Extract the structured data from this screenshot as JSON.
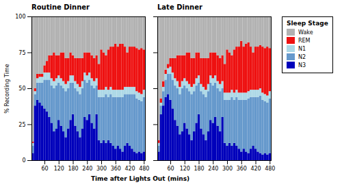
{
  "chart_data": [
    {
      "type": "bar",
      "stacked": true,
      "grid": false,
      "title": "Routine Dinner",
      "xlabel": "Time after Lights Out (mins)",
      "ylabel": "% Recording Time",
      "x": [
        10,
        20,
        30,
        40,
        50,
        60,
        70,
        80,
        90,
        100,
        110,
        120,
        130,
        140,
        150,
        160,
        170,
        180,
        190,
        200,
        210,
        220,
        230,
        240,
        250,
        260,
        270,
        280,
        290,
        300,
        310,
        320,
        330,
        340,
        350,
        360,
        370,
        380,
        390,
        400,
        410,
        420,
        430,
        440,
        450,
        460,
        470,
        480
      ],
      "xlim": [
        5,
        485
      ],
      "xticks": [
        60,
        120,
        180,
        240,
        300,
        360,
        420,
        480
      ],
      "ylim": [
        0,
        100
      ],
      "yticks": [
        0,
        25,
        50,
        75,
        100
      ],
      "series": [
        {
          "name": "N3",
          "color": "#0000bb",
          "values": [
            5,
            38,
            42,
            40,
            38,
            36,
            34,
            30,
            26,
            20,
            22,
            28,
            24,
            20,
            16,
            22,
            28,
            32,
            24,
            20,
            16,
            22,
            30,
            28,
            32,
            26,
            22,
            32,
            14,
            12,
            14,
            12,
            14,
            12,
            10,
            8,
            10,
            8,
            6,
            10,
            12,
            10,
            8,
            6,
            5,
            6,
            5,
            6
          ]
        },
        {
          "name": "N2",
          "color": "#6699cc",
          "values": [
            5,
            8,
            12,
            14,
            16,
            20,
            22,
            26,
            26,
            30,
            30,
            26,
            28,
            30,
            32,
            28,
            26,
            22,
            26,
            28,
            30,
            28,
            26,
            26,
            24,
            26,
            28,
            20,
            30,
            32,
            30,
            34,
            30,
            34,
            34,
            36,
            34,
            36,
            38,
            36,
            34,
            36,
            38,
            40,
            38,
            36,
            36,
            38
          ]
        },
        {
          "name": "N1",
          "color": "#add8e6",
          "values": [
            2,
            2,
            3,
            4,
            4,
            5,
            5,
            5,
            5,
            5,
            5,
            5,
            5,
            5,
            5,
            5,
            5,
            5,
            5,
            5,
            5,
            5,
            5,
            5,
            5,
            5,
            5,
            5,
            5,
            5,
            5,
            5,
            5,
            5,
            5,
            5,
            5,
            5,
            5,
            5,
            5,
            5,
            5,
            5,
            5,
            5,
            5,
            5
          ]
        },
        {
          "name": "REM",
          "color": "#ee1111",
          "values": [
            1,
            2,
            3,
            2,
            2,
            5,
            8,
            12,
            16,
            20,
            16,
            14,
            18,
            20,
            18,
            16,
            16,
            14,
            16,
            18,
            20,
            16,
            14,
            16,
            14,
            16,
            16,
            16,
            18,
            28,
            26,
            22,
            28,
            28,
            30,
            32,
            30,
            32,
            32,
            28,
            24,
            28,
            28,
            28,
            30,
            30,
            32,
            28
          ]
        },
        {
          "name": "Wake",
          "color": "#b2b2b2",
          "values": [
            87,
            50,
            40,
            40,
            40,
            34,
            31,
            27,
            27,
            25,
            27,
            27,
            25,
            25,
            29,
            29,
            25,
            27,
            29,
            29,
            29,
            29,
            25,
            25,
            25,
            27,
            29,
            27,
            33,
            23,
            25,
            27,
            23,
            21,
            21,
            19,
            21,
            19,
            19,
            21,
            25,
            21,
            21,
            21,
            22,
            23,
            22,
            23
          ]
        }
      ]
    },
    {
      "type": "bar",
      "stacked": true,
      "grid": false,
      "title": "Late Dinner",
      "tick_labels": "x",
      "legend": "right",
      "legend_title": "Sleep Stage",
      "x": [
        10,
        20,
        30,
        40,
        50,
        60,
        70,
        80,
        90,
        100,
        110,
        120,
        130,
        140,
        150,
        160,
        170,
        180,
        190,
        200,
        210,
        220,
        230,
        240,
        250,
        260,
        270,
        280,
        290,
        300,
        310,
        320,
        330,
        340,
        350,
        360,
        370,
        380,
        390,
        400,
        410,
        420,
        430,
        440,
        450,
        460,
        470,
        480
      ],
      "xlim": [
        5,
        485
      ],
      "xticks": [
        60,
        120,
        180,
        240,
        300,
        360,
        420,
        480
      ],
      "ylim": [
        0,
        100
      ],
      "yticks": [
        0,
        25,
        50,
        75,
        100
      ],
      "series": [
        {
          "name": "N3",
          "color": "#0000bb",
          "values": [
            6,
            32,
            38,
            44,
            46,
            42,
            36,
            28,
            24,
            18,
            20,
            26,
            22,
            18,
            14,
            20,
            26,
            32,
            22,
            18,
            14,
            20,
            28,
            26,
            30,
            24,
            20,
            30,
            12,
            10,
            12,
            10,
            12,
            10,
            8,
            6,
            8,
            6,
            5,
            8,
            10,
            8,
            6,
            5,
            4,
            5,
            4,
            5
          ]
        },
        {
          "name": "N2",
          "color": "#6699cc",
          "values": [
            4,
            6,
            10,
            12,
            14,
            18,
            20,
            24,
            26,
            28,
            30,
            26,
            28,
            30,
            32,
            28,
            26,
            22,
            26,
            28,
            30,
            28,
            26,
            26,
            24,
            26,
            28,
            20,
            30,
            32,
            30,
            34,
            30,
            34,
            34,
            36,
            34,
            36,
            38,
            36,
            34,
            36,
            38,
            40,
            38,
            36,
            36,
            38
          ]
        },
        {
          "name": "N1",
          "color": "#add8e6",
          "values": [
            2,
            2,
            3,
            4,
            4,
            5,
            5,
            5,
            5,
            5,
            5,
            5,
            5,
            5,
            5,
            5,
            5,
            5,
            5,
            5,
            5,
            5,
            5,
            5,
            5,
            5,
            5,
            5,
            5,
            5,
            5,
            5,
            5,
            5,
            5,
            5,
            5,
            5,
            5,
            5,
            5,
            5,
            5,
            5,
            5,
            5,
            5,
            5
          ]
        },
        {
          "name": "REM",
          "color": "#ee1111",
          "values": [
            2,
            3,
            4,
            3,
            3,
            6,
            10,
            14,
            18,
            22,
            18,
            16,
            20,
            22,
            20,
            18,
            18,
            16,
            18,
            20,
            22,
            18,
            16,
            18,
            16,
            18,
            18,
            18,
            20,
            30,
            28,
            24,
            30,
            30,
            32,
            36,
            32,
            34,
            34,
            30,
            26,
            30,
            30,
            30,
            32,
            32,
            34,
            30
          ]
        },
        {
          "name": "Wake",
          "color": "#b2b2b2",
          "values": [
            86,
            57,
            45,
            37,
            33,
            29,
            29,
            29,
            27,
            27,
            27,
            27,
            25,
            25,
            29,
            29,
            25,
            25,
            29,
            29,
            29,
            29,
            25,
            25,
            25,
            27,
            29,
            27,
            33,
            23,
            25,
            27,
            23,
            21,
            21,
            17,
            21,
            19,
            18,
            21,
            25,
            21,
            21,
            20,
            21,
            22,
            21,
            22
          ]
        }
      ]
    }
  ]
}
